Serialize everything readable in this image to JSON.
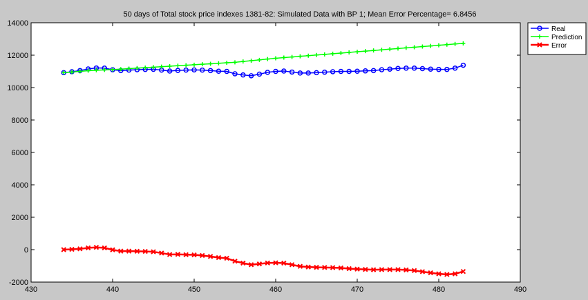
{
  "chart_data": {
    "type": "line",
    "title": "50 days of Total stock price indexes 1381-82: Simulated Data with BP 1;  Mean Error Percentage= 6.8456",
    "xlim": [
      430,
      490
    ],
    "ylim": [
      -2000,
      14000
    ],
    "x_ticks": [
      430,
      440,
      450,
      460,
      470,
      480,
      490
    ],
    "y_ticks": [
      -2000,
      0,
      2000,
      4000,
      6000,
      8000,
      10000,
      12000,
      14000
    ],
    "grid": false,
    "legend_position": "top-right",
    "x": [
      434,
      435,
      436,
      437,
      438,
      439,
      440,
      441,
      442,
      443,
      444,
      445,
      446,
      447,
      448,
      449,
      450,
      451,
      452,
      453,
      454,
      455,
      456,
      457,
      458,
      459,
      460,
      461,
      462,
      463,
      464,
      465,
      466,
      467,
      468,
      469,
      470,
      471,
      472,
      473,
      474,
      475,
      476,
      477,
      478,
      479,
      480,
      481,
      482,
      483
    ],
    "series": [
      {
        "name": "Real",
        "color": "#0000ff",
        "marker": "circle",
        "values": [
          10920,
          10980,
          11050,
          11150,
          11210,
          11200,
          11100,
          11050,
          11080,
          11100,
          11120,
          11130,
          11080,
          11020,
          11060,
          11080,
          11090,
          11080,
          11050,
          11010,
          11000,
          10850,
          10780,
          10730,
          10830,
          10940,
          11000,
          11020,
          10960,
          10900,
          10900,
          10920,
          10950,
          10980,
          11000,
          11000,
          11010,
          11030,
          11050,
          11100,
          11140,
          11180,
          11200,
          11200,
          11170,
          11140,
          11120,
          11120,
          11200,
          11380
        ]
      },
      {
        "name": "Prediction",
        "color": "#00ff00",
        "marker": "plus",
        "values": [
          10920,
          10960,
          11000,
          11040,
          11070,
          11090,
          11110,
          11140,
          11170,
          11200,
          11230,
          11260,
          11290,
          11320,
          11350,
          11380,
          11410,
          11440,
          11470,
          11500,
          11530,
          11560,
          11610,
          11660,
          11710,
          11760,
          11810,
          11850,
          11890,
          11930,
          11970,
          12010,
          12050,
          12090,
          12130,
          12170,
          12210,
          12250,
          12290,
          12330,
          12370,
          12410,
          12450,
          12490,
          12530,
          12570,
          12610,
          12650,
          12690,
          12730
        ]
      },
      {
        "name": "Error",
        "color": "#ff0000",
        "marker": "x",
        "values": [
          0,
          20,
          50,
          110,
          140,
          110,
          -10,
          -90,
          -90,
          -100,
          -110,
          -130,
          -210,
          -300,
          -290,
          -310,
          -320,
          -360,
          -420,
          -490,
          -530,
          -710,
          -830,
          -930,
          -880,
          -820,
          -810,
          -830,
          -930,
          -1030,
          -1070,
          -1090,
          -1100,
          -1110,
          -1130,
          -1170,
          -1200,
          -1220,
          -1240,
          -1230,
          -1230,
          -1230,
          -1250,
          -1290,
          -1360,
          -1430,
          -1490,
          -1530,
          -1490,
          -1350
        ]
      }
    ]
  }
}
